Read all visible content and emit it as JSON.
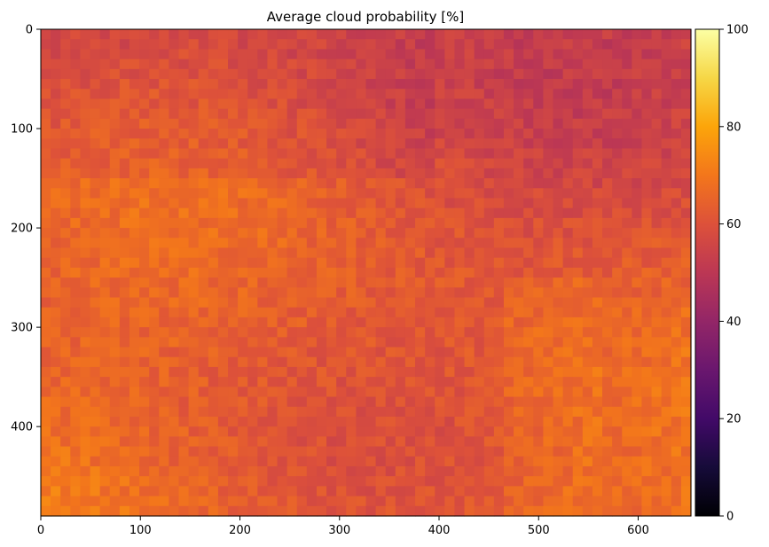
{
  "chart_data": {
    "type": "heatmap",
    "title": "Average cloud probability [%]",
    "xlabel": "",
    "ylabel": "",
    "xlim": [
      0,
      653
    ],
    "ylim": [
      490,
      0
    ],
    "x_ticks": [
      0,
      100,
      200,
      300,
      400,
      500,
      600
    ],
    "y_ticks": [
      0,
      100,
      200,
      300,
      400
    ],
    "grid": false,
    "grid_size": {
      "rows": 49,
      "cols": 66
    },
    "value_summary": {
      "typical_range": [
        52,
        78
      ],
      "note": "Values mostly between ~55 and ~75; lower (~55-60) in upper-left/top region, higher (~65-78) toward bottom and center-right"
    },
    "colorbar": {
      "colormap": "inferno",
      "range": [
        0,
        100
      ],
      "ticks": [
        0,
        20,
        40,
        60,
        80,
        100
      ],
      "placement": "right"
    }
  }
}
